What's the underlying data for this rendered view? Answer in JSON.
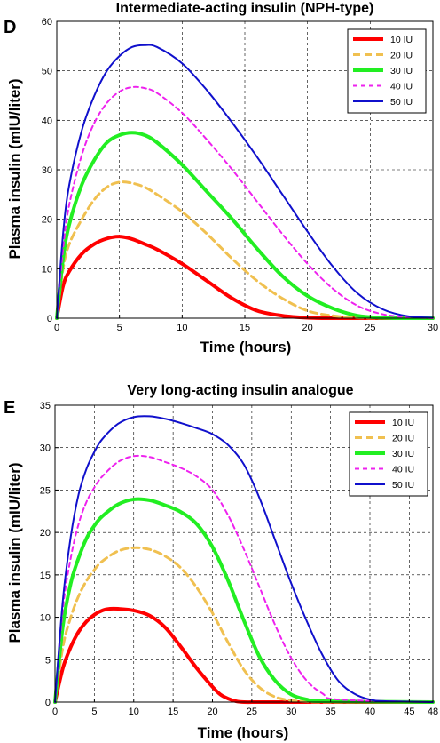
{
  "chart_data": [
    {
      "panel": "D",
      "type": "line",
      "title": "Intermediate-acting insulin (NPH-type)",
      "xlabel": "Time (hours)",
      "ylabel": "Plasma insulin (mIU/liter)",
      "xlim": [
        0,
        30
      ],
      "ylim": [
        0,
        60
      ],
      "xticks": [
        0,
        5,
        10,
        15,
        20,
        25,
        30
      ],
      "yticks": [
        0,
        10,
        20,
        30,
        40,
        50,
        60
      ],
      "grid": true,
      "legend_position": "top-right",
      "series": [
        {
          "name": "10 IU",
          "color": "#ff0000",
          "style": "solid",
          "x": [
            0,
            0.5,
            1,
            2,
            3,
            4,
            5,
            6,
            7,
            8,
            10,
            12,
            14,
            16,
            18,
            20,
            22,
            24,
            26,
            28,
            30
          ],
          "y": [
            0,
            6.5,
            9.5,
            13,
            15,
            16.1,
            16.5,
            16,
            15,
            13.9,
            11,
            7.5,
            4,
            1.5,
            0.5,
            0.1,
            0,
            0,
            0,
            0,
            0
          ]
        },
        {
          "name": "20 IU",
          "color": "#f0c050",
          "style": "dashed",
          "x": [
            0,
            0.5,
            1,
            2,
            3,
            4,
            5,
            6,
            7,
            8,
            10,
            12,
            14,
            16,
            18,
            20,
            22,
            24,
            26,
            28,
            30
          ],
          "y": [
            0,
            10,
            15,
            20,
            24,
            26.5,
            27.5,
            27.3,
            26.5,
            25,
            21.5,
            17,
            12,
            7.5,
            4,
            1.5,
            0.5,
            0.1,
            0,
            0,
            0
          ]
        },
        {
          "name": "30 IU",
          "color": "#22ee22",
          "style": "solid",
          "x": [
            0,
            0.5,
            1,
            2,
            3,
            4,
            5,
            6,
            7,
            8,
            10,
            12,
            14,
            16,
            18,
            20,
            22,
            24,
            26,
            28,
            30
          ],
          "y": [
            0,
            12,
            19,
            27,
            32,
            35.5,
            37,
            37.5,
            37,
            35.5,
            31,
            25.5,
            20,
            14,
            8.5,
            4.5,
            2,
            0.5,
            0.1,
            0,
            0
          ]
        },
        {
          "name": "40 IU",
          "color": "#ee22ee",
          "style": "dashed",
          "x": [
            0,
            0.5,
            1,
            2,
            3,
            4,
            5,
            6,
            7,
            8,
            10,
            12,
            14,
            16,
            18,
            20,
            22,
            24,
            26,
            28,
            30
          ],
          "y": [
            0,
            14,
            23,
            33,
            39.5,
            43.5,
            45.8,
            46.7,
            46.5,
            45.5,
            41.5,
            36,
            30,
            23.5,
            17,
            11,
            6,
            2.5,
            0.8,
            0.2,
            0
          ]
        },
        {
          "name": "50 IU",
          "color": "#1010cc",
          "style": "solid",
          "x": [
            0,
            0.5,
            1,
            2,
            3,
            4,
            5,
            6,
            7,
            8,
            10,
            12,
            14,
            16,
            18,
            20,
            22,
            24,
            26,
            28,
            30
          ],
          "y": [
            0,
            17,
            27,
            38,
            45,
            50,
            53,
            54.8,
            55.2,
            54.8,
            51.5,
            46,
            39.5,
            32.5,
            25,
            17.5,
            10.5,
            5,
            1.8,
            0.4,
            0.1
          ]
        }
      ]
    },
    {
      "panel": "E",
      "type": "line",
      "title": "Very long-acting insulin analogue",
      "xlabel": "Time (hours)",
      "ylabel": "Plasma insulin (mIU/liter)",
      "xlim": [
        0,
        48
      ],
      "ylim": [
        0,
        35
      ],
      "xticks": [
        0,
        5,
        10,
        15,
        20,
        25,
        30,
        35,
        40,
        45,
        48
      ],
      "yticks": [
        0,
        5,
        10,
        15,
        20,
        25,
        30,
        35
      ],
      "grid": true,
      "legend_position": "top-right",
      "series": [
        {
          "name": "10 IU",
          "color": "#ff0000",
          "style": "solid",
          "x": [
            0,
            1,
            2,
            3,
            4,
            5,
            6,
            7,
            8,
            10,
            12,
            14,
            16,
            18,
            20,
            21,
            22,
            23,
            24,
            26,
            30,
            48
          ],
          "y": [
            0,
            4,
            6.5,
            8.3,
            9.5,
            10.3,
            10.8,
            11,
            11,
            10.8,
            10.2,
            8.8,
            6.5,
            4,
            1.8,
            0.9,
            0.4,
            0.1,
            0,
            0,
            0,
            0
          ]
        },
        {
          "name": "20 IU",
          "color": "#f0c050",
          "style": "dashed",
          "x": [
            0,
            1,
            2,
            3,
            4,
            5,
            6,
            8,
            10,
            12,
            14,
            16,
            18,
            20,
            22,
            24,
            26,
            28,
            30,
            32,
            34,
            48
          ],
          "y": [
            0,
            6.5,
            10,
            12.5,
            14.3,
            15.6,
            16.6,
            17.8,
            18.2,
            18,
            17.2,
            15.8,
            13.5,
            10.5,
            7,
            3.8,
            1.7,
            0.6,
            0.2,
            0.05,
            0,
            0
          ]
        },
        {
          "name": "30 IU",
          "color": "#22ee22",
          "style": "solid",
          "x": [
            0,
            1,
            2,
            3,
            4,
            5,
            6,
            8,
            10,
            12,
            14,
            16,
            18,
            20,
            22,
            24,
            26,
            28,
            30,
            32,
            34,
            48
          ],
          "y": [
            0,
            9,
            14,
            17,
            19.3,
            20.8,
            21.9,
            23.3,
            23.9,
            23.8,
            23.2,
            22.4,
            21,
            18.3,
            14.3,
            9.6,
            5.3,
            2.5,
            0.9,
            0.3,
            0.1,
            0
          ]
        },
        {
          "name": "40 IU",
          "color": "#ee22ee",
          "style": "dashed",
          "x": [
            0,
            1,
            2,
            3,
            4,
            5,
            6,
            8,
            10,
            12,
            14,
            16,
            18,
            20,
            22,
            24,
            26,
            28,
            30,
            32,
            34,
            36,
            48
          ],
          "y": [
            0,
            11,
            17,
            21,
            23.6,
            25.3,
            26.6,
            28.3,
            29,
            28.9,
            28.3,
            27.6,
            26.6,
            25,
            22,
            18,
            13.5,
            9,
            5.2,
            2.5,
            1,
            0.3,
            0
          ]
        },
        {
          "name": "50 IU",
          "color": "#1010cc",
          "style": "solid",
          "x": [
            0,
            1,
            2,
            3,
            4,
            5,
            6,
            8,
            10,
            12,
            14,
            16,
            18,
            20,
            22,
            24,
            26,
            28,
            30,
            32,
            34,
            36,
            38,
            40,
            42,
            48
          ],
          "y": [
            0,
            12,
            19.5,
            24.5,
            27.5,
            29.5,
            31,
            32.8,
            33.6,
            33.7,
            33.4,
            32.9,
            32.3,
            31.6,
            30.3,
            28,
            24,
            19,
            14,
            9.5,
            5.5,
            2.5,
            1,
            0.3,
            0.1,
            0
          ]
        }
      ]
    }
  ]
}
